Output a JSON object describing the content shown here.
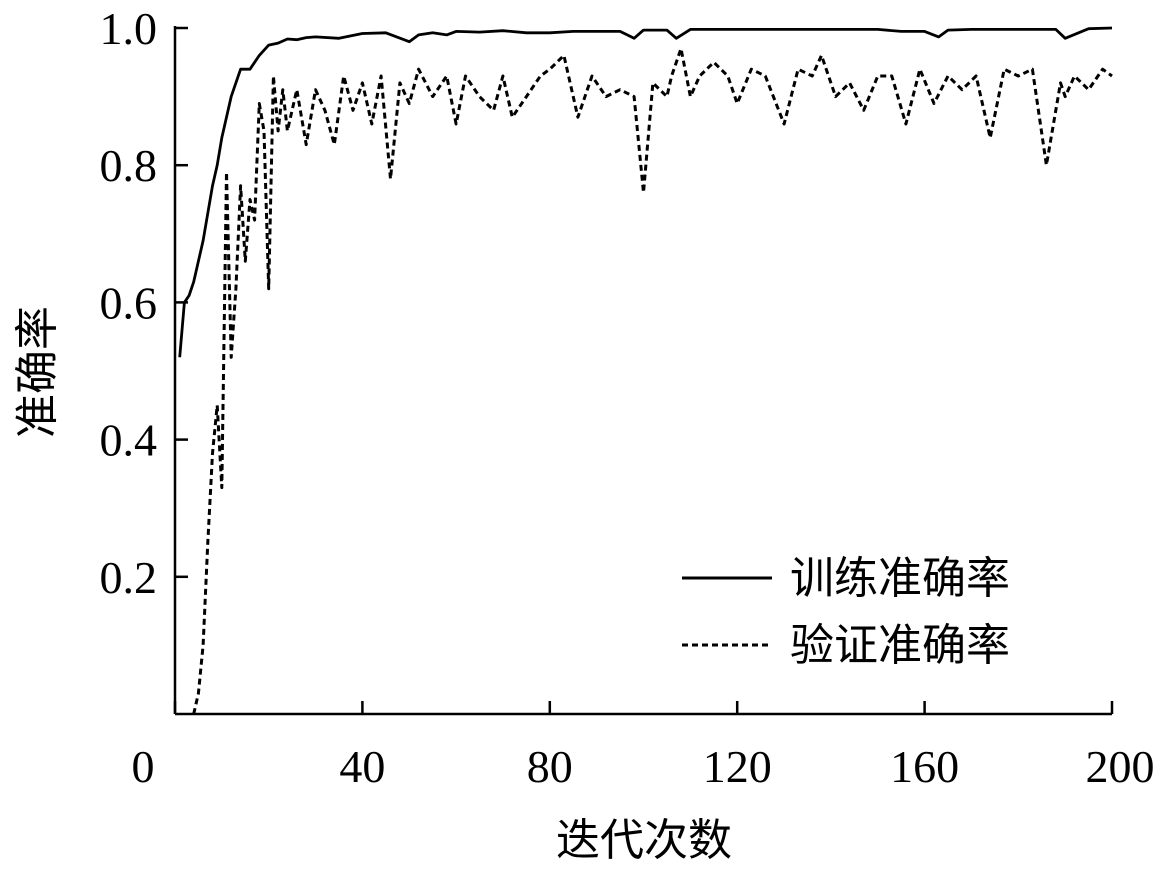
{
  "chart_data": {
    "type": "line",
    "title": "",
    "xlabel": "迭代次数",
    "ylabel": "准确率",
    "xlim": [
      0,
      200
    ],
    "ylim": [
      0,
      1.0
    ],
    "xticks": [
      0,
      40,
      80,
      120,
      160,
      200
    ],
    "xtick_labels": [
      "0",
      "40",
      "80",
      "120",
      "160",
      "200"
    ],
    "yticks": [
      0.2,
      0.4,
      0.6,
      0.8,
      1.0
    ],
    "ytick_labels": [
      "0.2",
      "0.4",
      "0.6",
      "0.8",
      "1.0"
    ],
    "grid": false,
    "legend_position": "bottom-right",
    "series": [
      {
        "name": "训练准确率",
        "style": "solid",
        "color": "#000000",
        "x": [
          1,
          2,
          3,
          4,
          5,
          6,
          7,
          8,
          9,
          10,
          12,
          14,
          16,
          18,
          20,
          22,
          24,
          26,
          28,
          30,
          35,
          40,
          45,
          50,
          52,
          55,
          58,
          60,
          65,
          70,
          75,
          80,
          85,
          90,
          95,
          98,
          100,
          105,
          107,
          110,
          115,
          120,
          125,
          130,
          135,
          140,
          145,
          150,
          155,
          160,
          163,
          165,
          170,
          175,
          180,
          185,
          188,
          190,
          195,
          200
        ],
        "values": [
          0.52,
          0.6,
          0.61,
          0.63,
          0.66,
          0.69,
          0.73,
          0.77,
          0.8,
          0.84,
          0.9,
          0.94,
          0.94,
          0.96,
          0.975,
          0.978,
          0.984,
          0.983,
          0.986,
          0.987,
          0.985,
          0.992,
          0.993,
          0.98,
          0.99,
          0.993,
          0.99,
          0.995,
          0.994,
          0.996,
          0.993,
          0.993,
          0.995,
          0.995,
          0.995,
          0.985,
          0.997,
          0.997,
          0.985,
          0.998,
          0.998,
          0.998,
          0.998,
          0.998,
          0.998,
          0.998,
          0.998,
          0.998,
          0.995,
          0.995,
          0.987,
          0.997,
          0.998,
          0.998,
          0.998,
          0.998,
          0.998,
          0.985,
          0.999,
          1.0
        ]
      },
      {
        "name": "验证准确率",
        "style": "dashed",
        "color": "#000000",
        "x": [
          4,
          5,
          6,
          7,
          8,
          9,
          10,
          11,
          12,
          13,
          14,
          15,
          16,
          17,
          18,
          19,
          20,
          21,
          22,
          23,
          24,
          26,
          28,
          30,
          32,
          34,
          36,
          38,
          40,
          42,
          44,
          46,
          48,
          50,
          52,
          55,
          58,
          60,
          62,
          65,
          68,
          70,
          72,
          75,
          78,
          80,
          83,
          86,
          89,
          92,
          95,
          98,
          100,
          102,
          105,
          106,
          108,
          110,
          112,
          115,
          118,
          120,
          123,
          126,
          130,
          133,
          136,
          138,
          141,
          144,
          147,
          150,
          153,
          156,
          159,
          162,
          165,
          168,
          171,
          174,
          177,
          180,
          183,
          186,
          189,
          190,
          192,
          195,
          198,
          200
        ],
        "values": [
          0.0,
          0.03,
          0.1,
          0.25,
          0.38,
          0.45,
          0.33,
          0.79,
          0.52,
          0.62,
          0.77,
          0.66,
          0.75,
          0.72,
          0.89,
          0.85,
          0.62,
          0.93,
          0.85,
          0.91,
          0.85,
          0.91,
          0.83,
          0.91,
          0.88,
          0.83,
          0.93,
          0.88,
          0.92,
          0.86,
          0.93,
          0.78,
          0.92,
          0.89,
          0.94,
          0.9,
          0.93,
          0.86,
          0.93,
          0.9,
          0.88,
          0.93,
          0.87,
          0.9,
          0.93,
          0.94,
          0.96,
          0.87,
          0.93,
          0.9,
          0.91,
          0.9,
          0.76,
          0.92,
          0.9,
          0.93,
          0.97,
          0.9,
          0.93,
          0.95,
          0.93,
          0.89,
          0.94,
          0.93,
          0.86,
          0.94,
          0.93,
          0.96,
          0.9,
          0.92,
          0.88,
          0.93,
          0.93,
          0.86,
          0.94,
          0.89,
          0.93,
          0.91,
          0.93,
          0.84,
          0.94,
          0.93,
          0.94,
          0.8,
          0.92,
          0.9,
          0.93,
          0.91,
          0.94,
          0.93
        ]
      }
    ]
  }
}
